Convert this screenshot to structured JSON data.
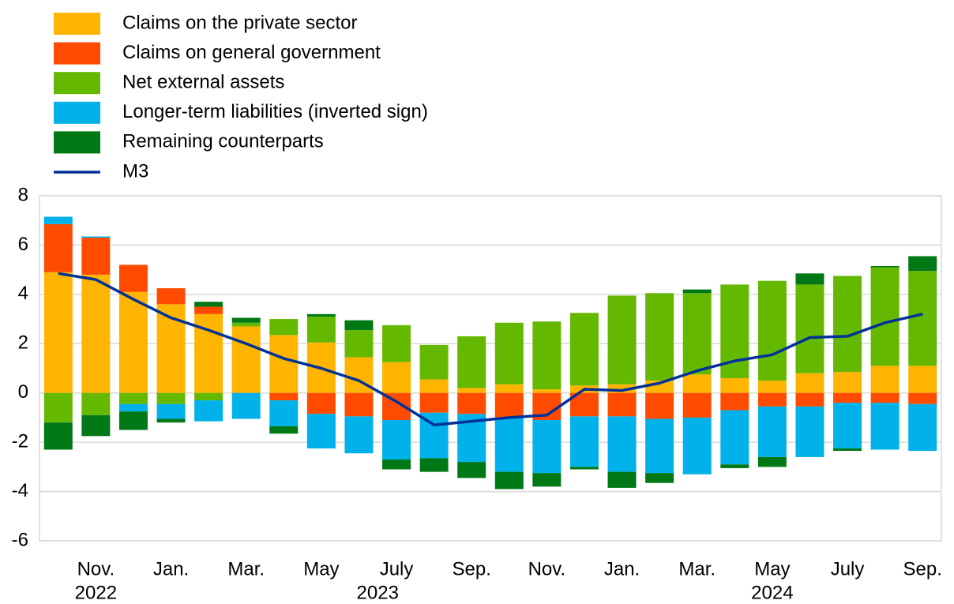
{
  "chart_data": {
    "type": "bar",
    "stacked": true,
    "categories": [
      null,
      "Nov.",
      null,
      "Jan.",
      null,
      "Mar.",
      null,
      "May",
      null,
      "July",
      null,
      "Sep.",
      null,
      "Nov.",
      null,
      "Jan.",
      null,
      "Mar.",
      null,
      "May",
      null,
      "July",
      null,
      "Sep."
    ],
    "x_groups": [
      {
        "label": "2022",
        "start": 0,
        "end": 2
      },
      {
        "label": "2023",
        "start": 3,
        "end": 14
      },
      {
        "label": "2024",
        "start": 15,
        "end": 23
      }
    ],
    "series": [
      {
        "name": "Claims on the private sector",
        "color": "#ffb400",
        "values": [
          4.9,
          4.8,
          4.1,
          3.6,
          3.2,
          2.7,
          2.35,
          2.05,
          1.45,
          1.25,
          0.55,
          0.2,
          0.35,
          0.15,
          0.3,
          0.35,
          0.5,
          0.75,
          0.6,
          0.5,
          0.8,
          0.85,
          1.1,
          1.1
        ]
      },
      {
        "name": "Claims on general government",
        "color": "#ff4b00",
        "values": [
          1.95,
          1.5,
          1.1,
          0.65,
          0.3,
          0.0,
          -0.3,
          -0.85,
          -0.95,
          -1.1,
          -0.8,
          -0.85,
          -1.0,
          -1.1,
          -0.95,
          -0.95,
          -1.05,
          -1.0,
          -0.7,
          -0.55,
          -0.55,
          -0.4,
          -0.4,
          -0.45
        ]
      },
      {
        "name": "Net external assets",
        "color": "#65b800",
        "values": [
          -1.2,
          -0.9,
          -0.45,
          -0.45,
          -0.3,
          0.15,
          0.65,
          1.05,
          1.1,
          1.5,
          1.4,
          2.1,
          2.5,
          2.75,
          2.95,
          3.6,
          3.55,
          3.3,
          3.8,
          4.05,
          3.6,
          3.9,
          4.0,
          3.85
        ]
      },
      {
        "name": "Longer-term liabilities (inverted sign)",
        "color": "#00b1ea",
        "values": [
          0.3,
          0.05,
          -0.3,
          -0.6,
          -0.85,
          -1.05,
          -1.05,
          -1.4,
          -1.5,
          -1.6,
          -1.85,
          -1.95,
          -2.2,
          -2.15,
          -2.05,
          -2.25,
          -2.2,
          -2.3,
          -2.2,
          -2.05,
          -2.05,
          -1.85,
          -1.9,
          -1.9
        ]
      },
      {
        "name": "Remaining counterparts",
        "color": "#007816",
        "values": [
          -1.1,
          -0.85,
          -0.75,
          -0.15,
          0.2,
          0.2,
          -0.3,
          0.1,
          0.4,
          -0.4,
          -0.55,
          -0.65,
          -0.7,
          -0.55,
          -0.1,
          -0.65,
          -0.4,
          0.15,
          -0.15,
          -0.4,
          0.45,
          -0.1,
          0.05,
          0.6
        ]
      },
      {
        "name": "M3",
        "color": "#003299",
        "type": "line",
        "values": [
          4.85,
          4.6,
          3.8,
          3.05,
          2.55,
          2.0,
          1.4,
          1.0,
          0.5,
          -0.35,
          -1.3,
          -1.15,
          -1.0,
          -0.9,
          0.15,
          0.1,
          0.4,
          0.9,
          1.3,
          1.55,
          2.25,
          2.3,
          2.85,
          3.2
        ]
      }
    ],
    "ylim": [
      -6,
      8
    ],
    "yticks": [
      -6,
      -4,
      -2,
      0,
      2,
      4,
      6,
      8
    ],
    "grid": true,
    "legend": "top-left"
  }
}
